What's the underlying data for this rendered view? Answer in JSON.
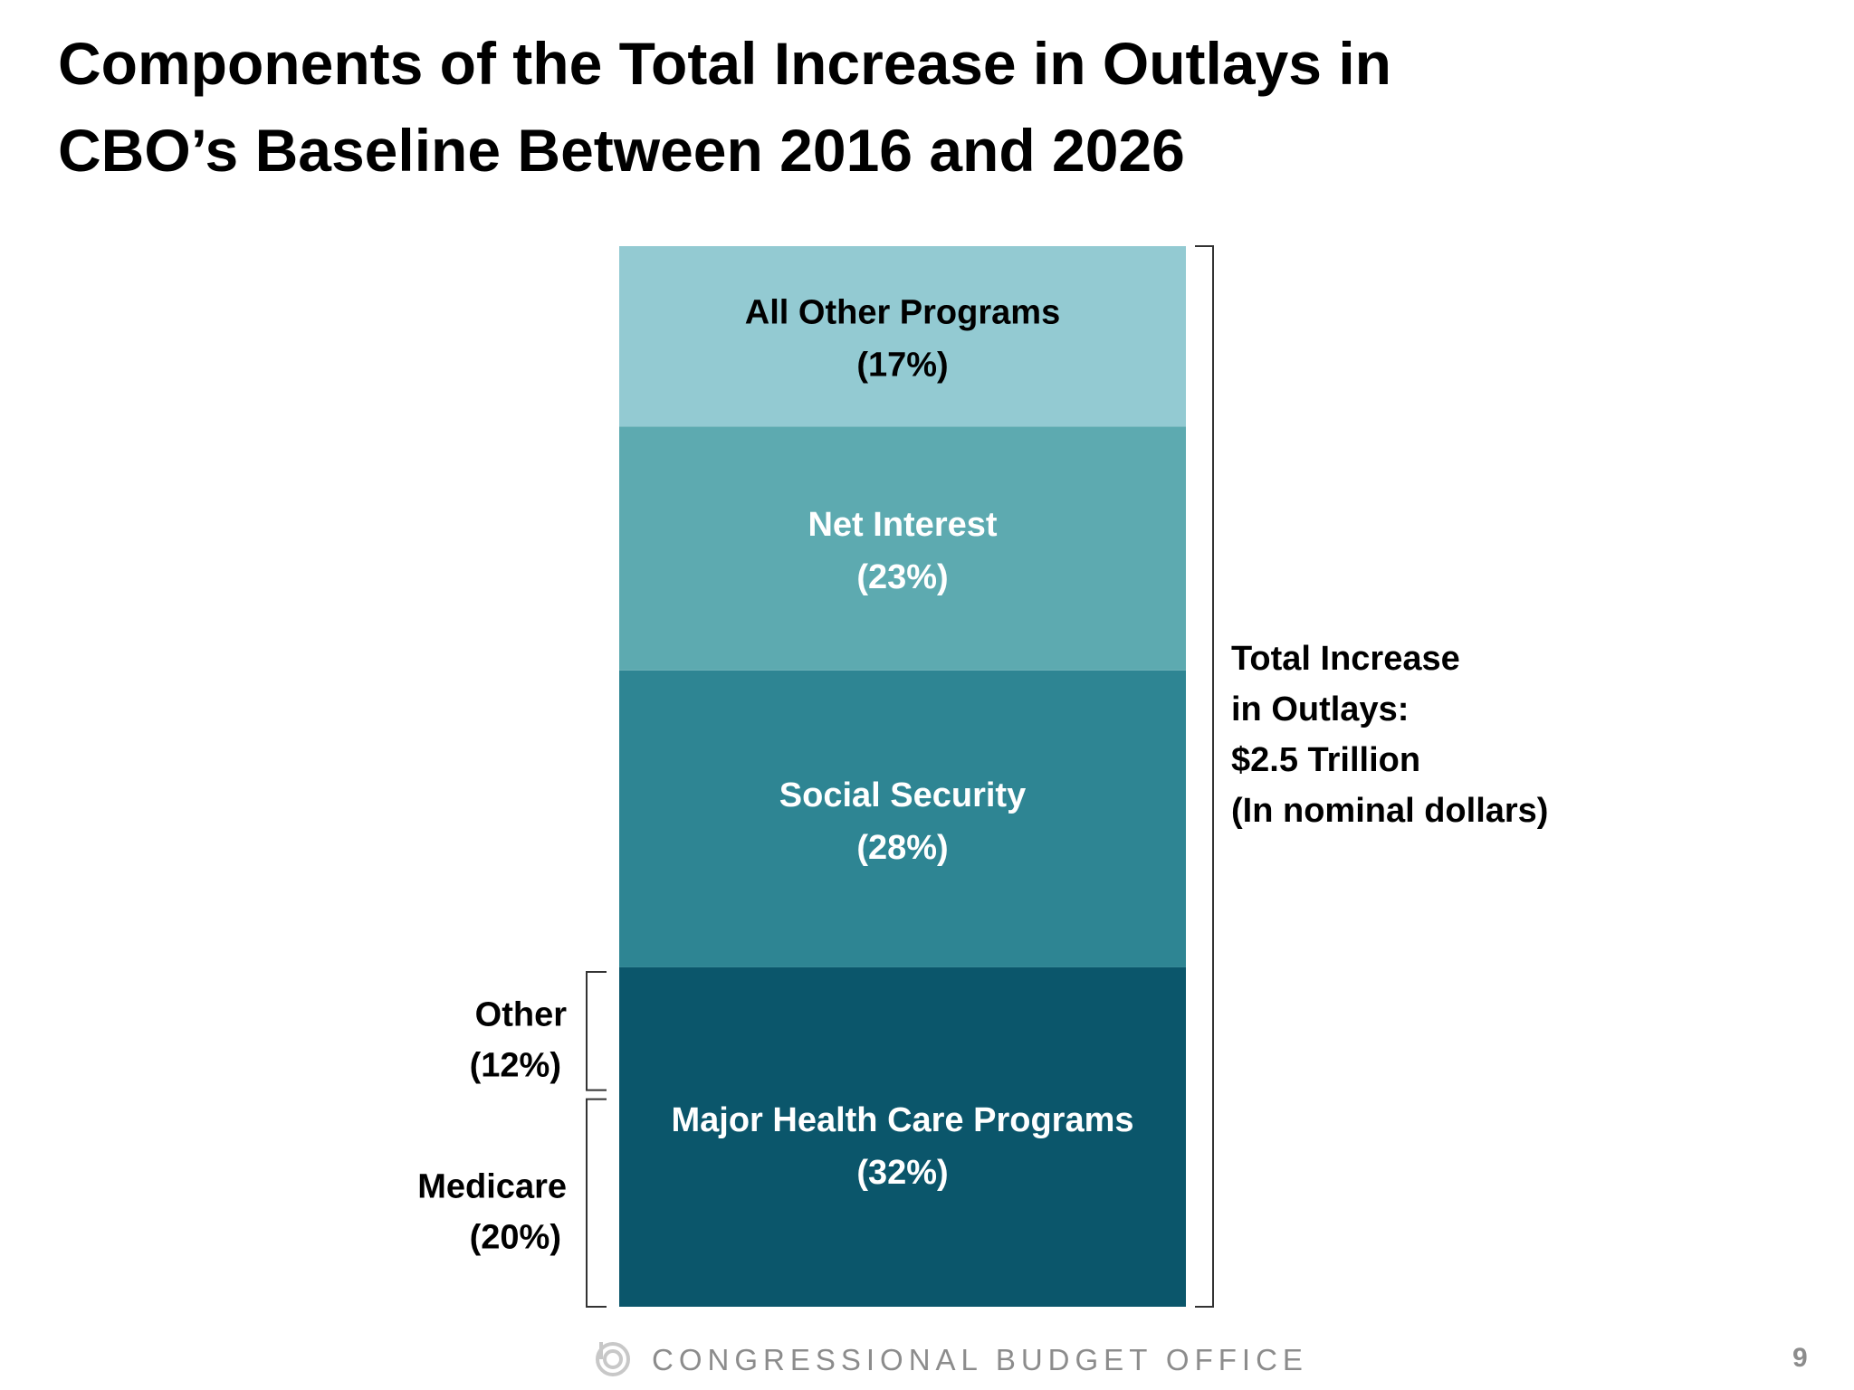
{
  "title": {
    "line1": "Components of the Total Increase in Outlays in",
    "line2": "CBO’s Baseline Between 2016 and 2026"
  },
  "chart_data": {
    "type": "bar",
    "stacked": true,
    "unit": "percent of total increase",
    "segments": [
      {
        "name": "Major Health Care Programs",
        "label": "Major Health Care Programs",
        "value_label": "(32%)",
        "value": 32,
        "color": "#0b566b",
        "text_color": "#ffffff"
      },
      {
        "name": "Social Security",
        "label": "Social Security",
        "value_label": "(28%)",
        "value": 28,
        "color": "#2e8593",
        "text_color": "#ffffff"
      },
      {
        "name": "Net Interest",
        "label": "Net Interest",
        "value_label": "(23%)",
        "value": 23,
        "color": "#5daab0",
        "text_color": "#ffffff"
      },
      {
        "name": "All Other Programs",
        "label": "All Other Programs",
        "value_label": "(17%)",
        "value": 17,
        "color": "#93cad2",
        "text_color": "#000000"
      }
    ],
    "health_breakdown": [
      {
        "label": "Medicare",
        "value_label": "(20%)",
        "value": 20
      },
      {
        "label": "Other",
        "value_label": "(12%)",
        "value": 12
      }
    ],
    "total_annotation": [
      "Total Increase",
      "in Outlays:",
      "$2.5 Trillion",
      "(In nominal dollars)"
    ]
  },
  "footer": {
    "organization": "CONGRESSIONAL BUDGET OFFICE",
    "page_number": "9",
    "logo_icon": "cbo-logo-icon"
  }
}
